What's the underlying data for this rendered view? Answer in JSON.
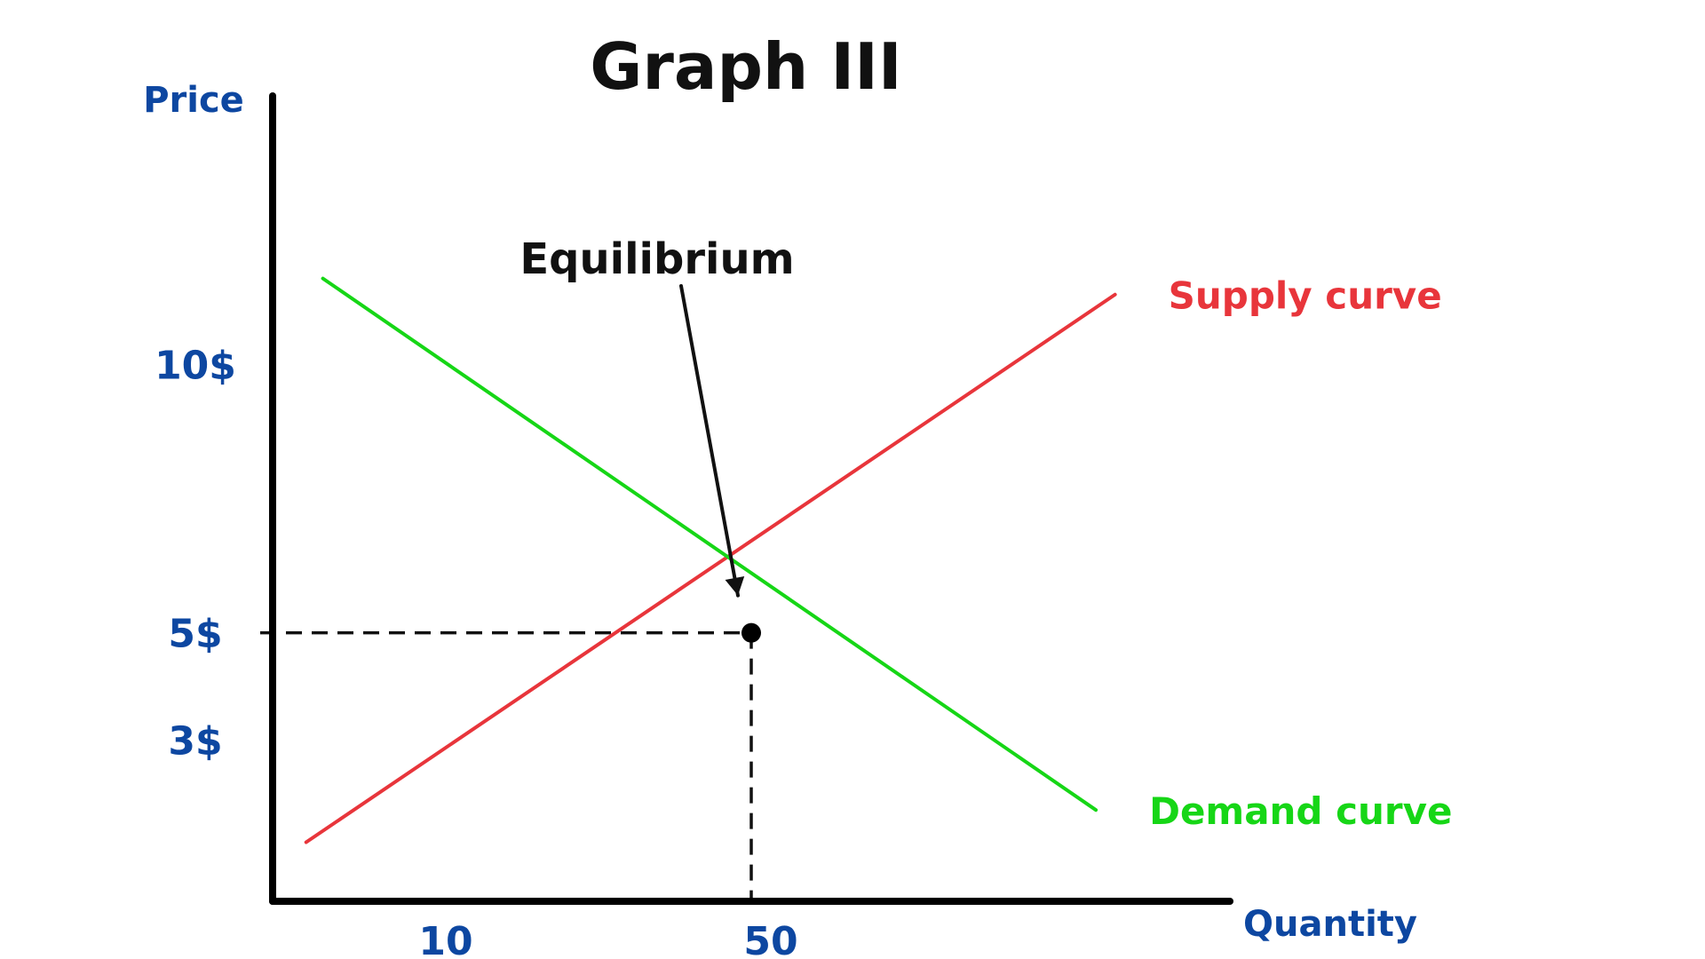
{
  "chart_data": {
    "type": "line",
    "title": "Graph III",
    "xlabel": "Quantity",
    "ylabel": "Price",
    "xlim": [
      0,
      200
    ],
    "ylim": [
      0,
      15
    ],
    "x_ticks": [
      {
        "value": 10,
        "label": "10"
      },
      {
        "value": 50,
        "label": "50"
      }
    ],
    "y_ticks": [
      {
        "value": 10,
        "label": "10$"
      },
      {
        "value": 5,
        "label": "5$"
      },
      {
        "value": 3,
        "label": "3$"
      }
    ],
    "grid": false,
    "series": [
      {
        "name": "Supply curve",
        "color": "#e8353b",
        "points": [
          [
            7,
            1.1
          ],
          [
            176,
            11.3
          ]
        ]
      },
      {
        "name": "Demand curve",
        "color": "#16d616",
        "points": [
          [
            10.5,
            11.6
          ],
          [
            172,
            1.7
          ]
        ]
      }
    ],
    "annotations": [
      {
        "text": "Equilibrium",
        "point": [
          100,
          5
        ],
        "dot_color": "#000000",
        "arrow_color": "#111111"
      }
    ],
    "guides": {
      "x": 100,
      "y": 5,
      "color": "#111111"
    },
    "colors": {
      "axis": "#000000",
      "label": "#0d47a1",
      "title": "#111111"
    }
  }
}
